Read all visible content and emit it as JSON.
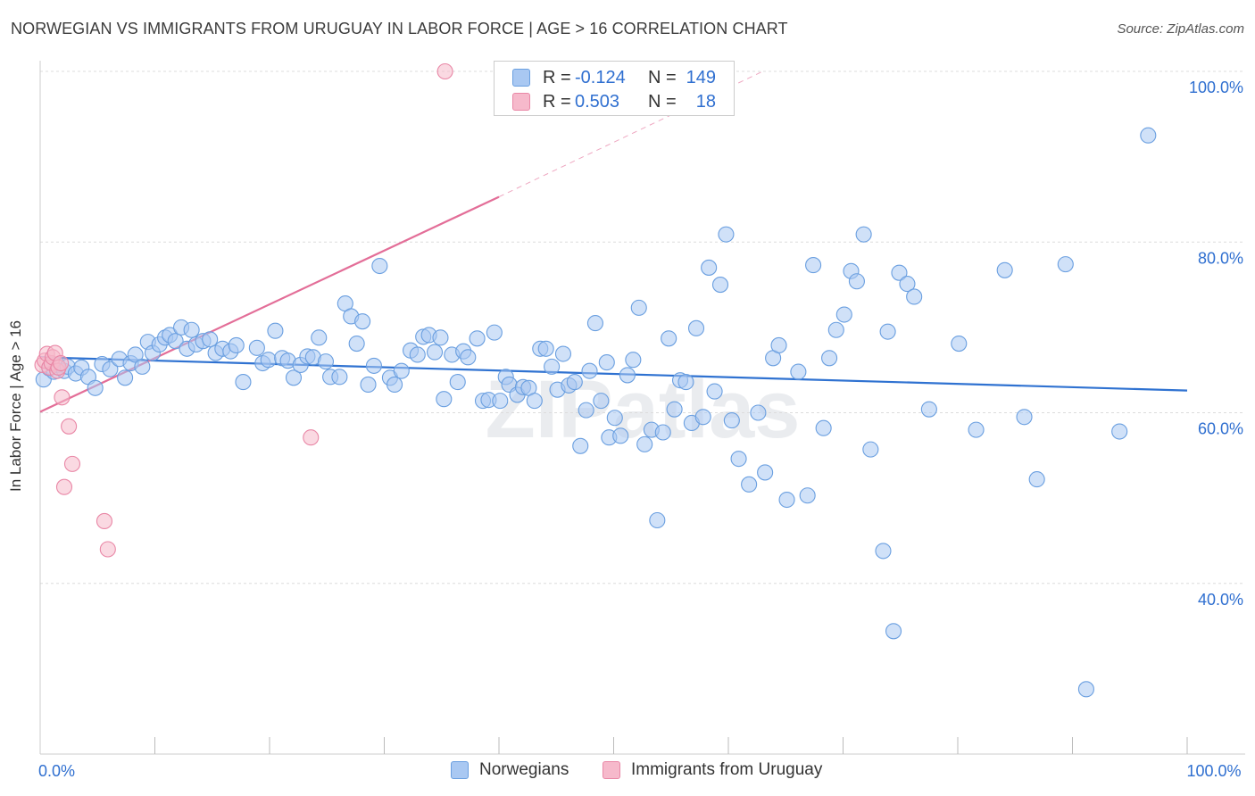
{
  "title": "NORWEGIAN VS IMMIGRANTS FROM URUGUAY IN LABOR FORCE | AGE > 16 CORRELATION CHART",
  "source": "Source: ZipAtlas.com",
  "watermark": "ZIPatlas",
  "legend": {
    "items": [
      {
        "r_label": "R =",
        "r_value": "-0.124",
        "n_label": "N =",
        "n_value": "149",
        "color": "#a9c8f2",
        "border": "#6a9fe0"
      },
      {
        "r_label": "R =",
        "r_value": "0.503",
        "n_label": "N =",
        "n_value": "18",
        "color": "#f6b9cb",
        "border": "#e987a6"
      }
    ]
  },
  "bottom_legend": [
    "Norwegians",
    "Immigrants from Uruguay"
  ],
  "chart_data": {
    "type": "scatter",
    "ylabel": "In Labor Force | Age > 16",
    "xlabel": "",
    "x_range": [
      0,
      100
    ],
    "y_range": [
      20,
      100
    ],
    "x_tick_labels": [
      {
        "value": 0,
        "label": "0.0%"
      },
      {
        "value": 100,
        "label": "100.0%"
      }
    ],
    "y_tick_labels": [
      {
        "value": 100,
        "label": "100.0%"
      },
      {
        "value": 80,
        "label": "80.0%"
      },
      {
        "value": 60,
        "label": "60.0%"
      },
      {
        "value": 40,
        "label": "40.0%"
      }
    ],
    "grid": true,
    "series": [
      {
        "name": "Norwegians",
        "color": "#a9c8f2",
        "edge": "#6a9fe0",
        "trend": {
          "x0": 0,
          "y0": 66.5,
          "x1": 100,
          "y1": 62.6,
          "color": "#2f72d1"
        },
        "points": [
          [
            0.3,
            63.9
          ],
          [
            0.8,
            65.2
          ],
          [
            1.2,
            64.8
          ],
          [
            1.5,
            65.6
          ],
          [
            2.1,
            64.9
          ],
          [
            2.4,
            65.4
          ],
          [
            3.1,
            64.6
          ],
          [
            3.6,
            65.3
          ],
          [
            4.2,
            64.2
          ],
          [
            4.8,
            62.9
          ],
          [
            5.4,
            65.7
          ],
          [
            6.1,
            65.1
          ],
          [
            6.9,
            66.3
          ],
          [
            7.4,
            64.1
          ],
          [
            7.9,
            65.8
          ],
          [
            8.3,
            66.8
          ],
          [
            8.9,
            65.4
          ],
          [
            9.4,
            68.3
          ],
          [
            9.8,
            67.0
          ],
          [
            10.4,
            68.0
          ],
          [
            10.9,
            68.8
          ],
          [
            11.3,
            69.1
          ],
          [
            11.8,
            68.4
          ],
          [
            12.3,
            70.0
          ],
          [
            12.8,
            67.5
          ],
          [
            13.2,
            69.7
          ],
          [
            13.6,
            68.0
          ],
          [
            14.2,
            68.4
          ],
          [
            14.8,
            68.6
          ],
          [
            15.3,
            67.0
          ],
          [
            15.9,
            67.5
          ],
          [
            16.6,
            67.2
          ],
          [
            17.1,
            67.9
          ],
          [
            17.7,
            63.6
          ],
          [
            18.9,
            67.6
          ],
          [
            19.4,
            65.8
          ],
          [
            19.9,
            66.2
          ],
          [
            20.5,
            69.6
          ],
          [
            21.1,
            66.4
          ],
          [
            21.6,
            66.1
          ],
          [
            22.1,
            64.1
          ],
          [
            22.7,
            65.6
          ],
          [
            23.3,
            66.6
          ],
          [
            23.8,
            66.5
          ],
          [
            24.3,
            68.8
          ],
          [
            24.9,
            66.0
          ],
          [
            25.3,
            64.2
          ],
          [
            26.1,
            64.2
          ],
          [
            26.6,
            72.8
          ],
          [
            27.1,
            71.3
          ],
          [
            27.6,
            68.1
          ],
          [
            28.1,
            70.7
          ],
          [
            28.6,
            63.3
          ],
          [
            29.1,
            65.5
          ],
          [
            29.6,
            77.2
          ],
          [
            30.5,
            64.1
          ],
          [
            30.9,
            63.3
          ],
          [
            31.5,
            64.9
          ],
          [
            32.3,
            67.3
          ],
          [
            32.9,
            66.8
          ],
          [
            33.4,
            68.9
          ],
          [
            33.9,
            69.1
          ],
          [
            34.4,
            67.1
          ],
          [
            34.9,
            68.8
          ],
          [
            35.2,
            61.6
          ],
          [
            35.9,
            66.8
          ],
          [
            36.4,
            63.6
          ],
          [
            36.9,
            67.2
          ],
          [
            37.3,
            66.5
          ],
          [
            38.1,
            68.7
          ],
          [
            38.6,
            61.4
          ],
          [
            39.1,
            61.5
          ],
          [
            39.6,
            69.4
          ],
          [
            40.1,
            61.4
          ],
          [
            40.6,
            64.2
          ],
          [
            40.9,
            63.3
          ],
          [
            41.6,
            62.1
          ],
          [
            42.1,
            63.0
          ],
          [
            42.6,
            62.9
          ],
          [
            43.1,
            61.4
          ],
          [
            43.6,
            67.5
          ],
          [
            44.1,
            67.5
          ],
          [
            44.6,
            65.4
          ],
          [
            45.1,
            62.7
          ],
          [
            45.6,
            66.9
          ],
          [
            46.1,
            63.2
          ],
          [
            46.6,
            63.6
          ],
          [
            47.1,
            56.1
          ],
          [
            47.6,
            60.3
          ],
          [
            47.9,
            64.9
          ],
          [
            48.4,
            70.5
          ],
          [
            48.9,
            61.4
          ],
          [
            49.4,
            65.9
          ],
          [
            49.6,
            57.1
          ],
          [
            50.1,
            59.4
          ],
          [
            50.6,
            57.3
          ],
          [
            51.2,
            64.4
          ],
          [
            51.7,
            66.2
          ],
          [
            52.2,
            72.3
          ],
          [
            52.7,
            56.3
          ],
          [
            53.3,
            58.0
          ],
          [
            53.8,
            47.4
          ],
          [
            54.3,
            57.7
          ],
          [
            54.8,
            68.7
          ],
          [
            55.3,
            60.4
          ],
          [
            55.8,
            63.8
          ],
          [
            56.3,
            63.6
          ],
          [
            56.8,
            58.8
          ],
          [
            57.2,
            69.9
          ],
          [
            57.8,
            59.5
          ],
          [
            58.3,
            77.0
          ],
          [
            58.8,
            62.5
          ],
          [
            59.3,
            75.0
          ],
          [
            59.8,
            80.9
          ],
          [
            60.3,
            59.1
          ],
          [
            60.9,
            54.6
          ],
          [
            61.8,
            51.6
          ],
          [
            62.6,
            60.0
          ],
          [
            63.2,
            53.0
          ],
          [
            63.9,
            66.4
          ],
          [
            64.4,
            67.9
          ],
          [
            65.1,
            49.8
          ],
          [
            66.1,
            64.8
          ],
          [
            66.9,
            50.3
          ],
          [
            67.4,
            77.3
          ],
          [
            68.3,
            58.2
          ],
          [
            68.8,
            66.4
          ],
          [
            69.4,
            69.7
          ],
          [
            70.1,
            71.5
          ],
          [
            70.7,
            76.6
          ],
          [
            71.2,
            75.4
          ],
          [
            71.8,
            80.9
          ],
          [
            72.4,
            55.7
          ],
          [
            73.5,
            43.8
          ],
          [
            73.9,
            69.5
          ],
          [
            74.4,
            34.4
          ],
          [
            74.9,
            76.4
          ],
          [
            75.6,
            75.1
          ],
          [
            76.2,
            73.6
          ],
          [
            77.5,
            60.4
          ],
          [
            80.1,
            68.1
          ],
          [
            81.6,
            58.0
          ],
          [
            84.1,
            76.7
          ],
          [
            85.8,
            59.5
          ],
          [
            86.9,
            52.2
          ],
          [
            89.4,
            77.4
          ],
          [
            91.2,
            27.6
          ],
          [
            94.1,
            57.8
          ],
          [
            96.6,
            92.5
          ]
        ]
      },
      {
        "name": "Immigrants from Uruguay",
        "color": "#f6b9cb",
        "edge": "#e987a6",
        "trend": {
          "x0": 0,
          "y0": 60.1,
          "x1": 40,
          "y1": 85.3,
          "dash_to_x": 63,
          "dash_to_y": 100,
          "color": "#e36e98"
        },
        "points": [
          [
            0.2,
            65.6
          ],
          [
            0.4,
            66.1
          ],
          [
            0.6,
            66.9
          ],
          [
            0.8,
            65.3
          ],
          [
            1.0,
            65.8
          ],
          [
            1.1,
            66.5
          ],
          [
            1.3,
            67.0
          ],
          [
            1.5,
            64.9
          ],
          [
            1.6,
            65.3
          ],
          [
            1.8,
            65.8
          ],
          [
            1.9,
            61.8
          ],
          [
            2.1,
            51.3
          ],
          [
            2.5,
            58.4
          ],
          [
            2.8,
            54.0
          ],
          [
            5.6,
            47.3
          ],
          [
            5.9,
            44.0
          ],
          [
            23.6,
            57.1
          ],
          [
            35.3,
            100.0
          ]
        ]
      }
    ]
  }
}
